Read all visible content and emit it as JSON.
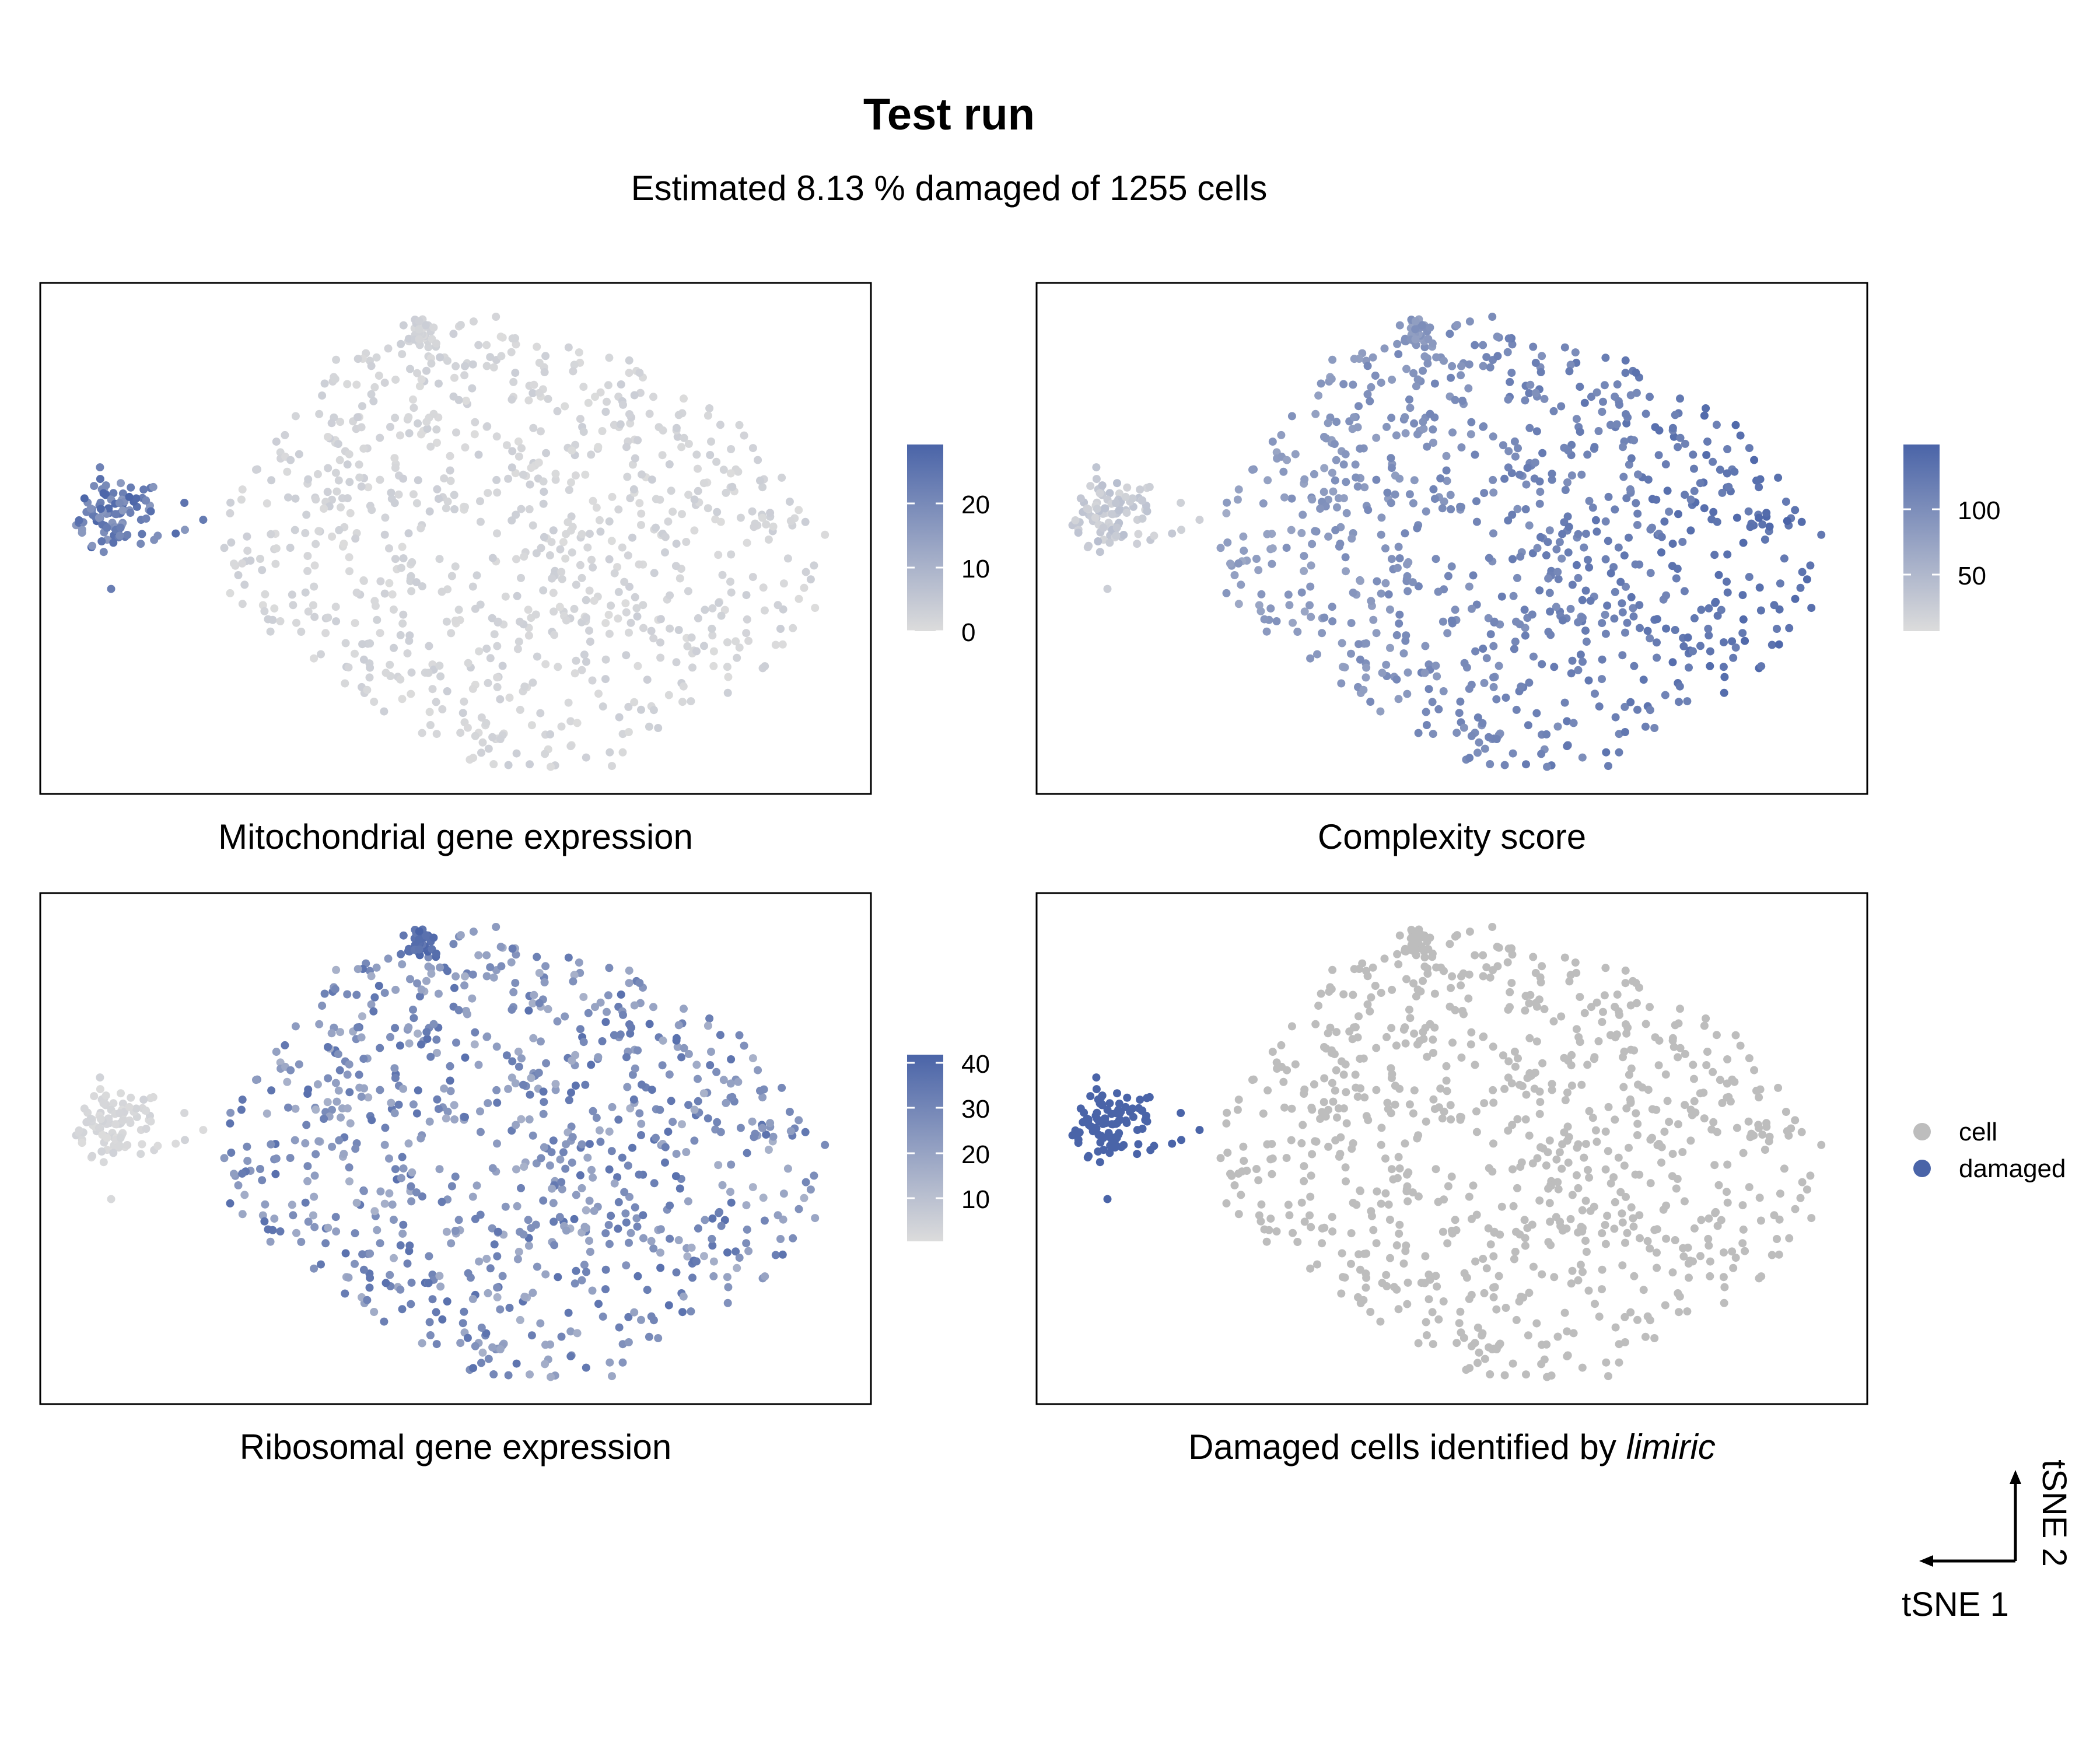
{
  "title": "Test run",
  "subtitle": "Estimated 8.13 % damaged of  1255  cells",
  "axes": {
    "x_label": "tSNE 1",
    "y_label": "tSNE 2"
  },
  "colors": {
    "low": "#dcdcdc",
    "high": "#4a64a8",
    "cell": "#bdbdbd",
    "damaged": "#4a64a8",
    "frame": "#000000"
  },
  "chart_data": [
    {
      "type": "scatter",
      "caption": "Mitochondrial gene expression",
      "color_scale": {
        "type": "gradient",
        "ticks": [
          "0",
          "10",
          "20"
        ],
        "tick_values": [
          0,
          10,
          20
        ],
        "limits": [
          0,
          29
        ]
      },
      "notes": "Cells coloured by mitochondrial gene expression; only the small left cluster shows high values (up to ~29)."
    },
    {
      "type": "scatter",
      "caption": "Complexity score",
      "color_scale": {
        "type": "gradient",
        "ticks": [
          "50",
          "100"
        ],
        "tick_values": [
          50,
          100
        ],
        "limits": [
          25,
          150
        ]
      },
      "notes": "Complexity score is low in the small left cluster and highest on the right side of the embedding."
    },
    {
      "type": "scatter",
      "caption": "Ribosomal gene expression",
      "color_scale": {
        "type": "gradient",
        "ticks": [
          "10",
          "20",
          "30",
          "40"
        ],
        "tick_values": [
          10,
          20,
          30,
          40
        ],
        "limits": [
          0,
          41
        ]
      },
      "notes": "Ribosomal expression is low in the small left cluster and high in the top cluster."
    },
    {
      "type": "scatter",
      "caption_prefix": "Damaged cells identified by ",
      "caption_emph": "limiric",
      "legend": [
        {
          "label": "cell",
          "color": "#bdbdbd"
        },
        {
          "label": "damaged",
          "color": "#4a64a8"
        }
      ],
      "damaged_fraction_percent": 8.13,
      "total_cells": 1255
    }
  ]
}
